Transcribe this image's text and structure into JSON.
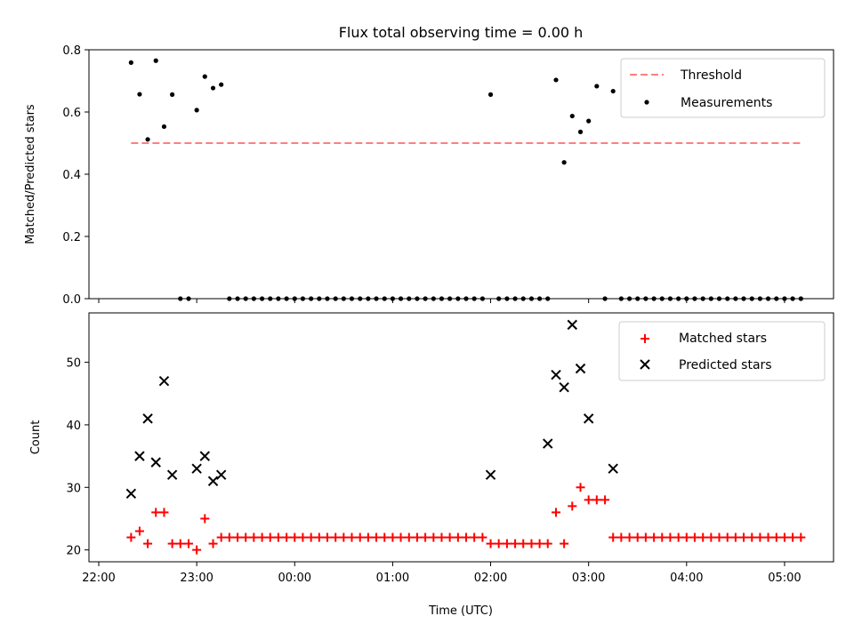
{
  "title": "Flux total observing time = 0.00 h",
  "colors": {
    "threshold": "#ff7f7f",
    "measurement": "#000000",
    "matched": "#ff0000",
    "predicted": "#000000"
  },
  "chart_data": [
    {
      "type": "scatter",
      "name": "ratio-panel",
      "ylabel": "Matched/Predicted stars",
      "xlim": [
        -0.1,
        7.5
      ],
      "ylim": [
        0,
        0.8
      ],
      "yticks": [
        0,
        0.2,
        0.4,
        0.6,
        0.8
      ],
      "ytick_labels": [
        "0.0",
        "0.2",
        "0.4",
        "0.6",
        "0.8"
      ],
      "threshold": {
        "label": "Threshold",
        "value": 0.5,
        "x_start": 0.33,
        "x_end": 7.17
      },
      "legend": [
        "Threshold",
        "Measurements"
      ],
      "series": [
        {
          "name": "Measurements",
          "x": [
            0.33,
            0.417,
            0.5,
            0.583,
            0.667,
            0.75,
            0.833,
            0.917,
            1.0,
            1.083,
            1.167,
            1.25,
            1.333,
            1.417,
            1.5,
            1.583,
            1.667,
            1.75,
            1.833,
            1.917,
            2.0,
            2.083,
            2.167,
            2.25,
            2.333,
            2.417,
            2.5,
            2.583,
            2.667,
            2.75,
            2.833,
            2.917,
            3.0,
            3.083,
            3.167,
            3.25,
            3.333,
            3.417,
            3.5,
            3.583,
            3.667,
            3.75,
            3.833,
            3.917,
            4.0,
            4.083,
            4.167,
            4.25,
            4.333,
            4.417,
            4.5,
            4.583,
            4.667,
            4.75,
            4.833,
            4.917,
            5.0,
            5.083,
            5.167,
            5.25,
            5.333,
            5.417,
            5.5,
            5.583,
            5.667,
            5.75,
            5.833,
            5.917,
            6.0,
            6.083,
            6.167,
            6.25,
            6.333,
            6.417,
            6.5,
            6.583,
            6.667,
            6.75,
            6.833,
            6.917,
            7.0,
            7.083,
            7.167
          ],
          "y": [
            0.759,
            0.657,
            0.512,
            0.765,
            0.553,
            0.656,
            0.0,
            0.0,
            0.606,
            0.714,
            0.677,
            0.688,
            0.0,
            0.0,
            0.0,
            0.0,
            0.0,
            0.0,
            0.0,
            0.0,
            0.0,
            0.0,
            0.0,
            0.0,
            0.0,
            0.0,
            0.0,
            0.0,
            0.0,
            0.0,
            0.0,
            0.0,
            0.0,
            0.0,
            0.0,
            0.0,
            0.0,
            0.0,
            0.0,
            0.0,
            0.0,
            0.0,
            0.0,
            0.0,
            0.656,
            0.0,
            0.0,
            0.0,
            0.0,
            0.0,
            0.0,
            0.0,
            0.703,
            0.438,
            0.587,
            0.536,
            0.571,
            0.683,
            0.0,
            0.667,
            0.0,
            0.0,
            0.0,
            0.0,
            0.0,
            0.0,
            0.0,
            0.0,
            0.0,
            0.0,
            0.0,
            0.0,
            0.0,
            0.0,
            0.0,
            0.0,
            0.0,
            0.0,
            0.0,
            0.0,
            0.0,
            0.0,
            0.0
          ]
        }
      ]
    },
    {
      "type": "scatter",
      "name": "count-panel",
      "xlabel": "Time (UTC)",
      "ylabel": "Count",
      "xlim": [
        -0.1,
        7.5
      ],
      "ylim": [
        18.1,
        57.9
      ],
      "yticks": [
        20,
        30,
        40,
        50
      ],
      "ytick_labels": [
        "20",
        "30",
        "40",
        "50"
      ],
      "xticks": [
        0,
        1,
        2,
        3,
        4,
        5,
        6,
        7
      ],
      "xtick_labels": [
        "22:00",
        "23:00",
        "00:00",
        "01:00",
        "02:00",
        "03:00",
        "04:00",
        "05:00"
      ],
      "legend": [
        "Matched stars",
        "Predicted stars"
      ],
      "series": [
        {
          "name": "Matched stars",
          "x": [
            0.33,
            0.417,
            0.5,
            0.583,
            0.667,
            0.75,
            0.833,
            0.917,
            1.0,
            1.083,
            1.167,
            1.25,
            1.333,
            1.417,
            1.5,
            1.583,
            1.667,
            1.75,
            1.833,
            1.917,
            2.0,
            2.083,
            2.167,
            2.25,
            2.333,
            2.417,
            2.5,
            2.583,
            2.667,
            2.75,
            2.833,
            2.917,
            3.0,
            3.083,
            3.167,
            3.25,
            3.333,
            3.417,
            3.5,
            3.583,
            3.667,
            3.75,
            3.833,
            3.917,
            4.0,
            4.083,
            4.167,
            4.25,
            4.333,
            4.417,
            4.5,
            4.583,
            4.667,
            4.75,
            4.833,
            4.917,
            5.0,
            5.083,
            5.167,
            5.25,
            5.333,
            5.417,
            5.5,
            5.583,
            5.667,
            5.75,
            5.833,
            5.917,
            6.0,
            6.083,
            6.167,
            6.25,
            6.333,
            6.417,
            6.5,
            6.583,
            6.667,
            6.75,
            6.833,
            6.917,
            7.0,
            7.083,
            7.167
          ],
          "y": [
            22,
            23,
            21,
            26,
            26,
            21,
            21,
            21,
            20,
            25,
            21,
            22,
            22,
            22,
            22,
            22,
            22,
            22,
            22,
            22,
            22,
            22,
            22,
            22,
            22,
            22,
            22,
            22,
            22,
            22,
            22,
            22,
            22,
            22,
            22,
            22,
            22,
            22,
            22,
            22,
            22,
            22,
            22,
            22,
            21,
            21,
            21,
            21,
            21,
            21,
            21,
            21,
            26,
            21,
            27,
            30,
            28,
            28,
            28,
            22,
            22,
            22,
            22,
            22,
            22,
            22,
            22,
            22,
            22,
            22,
            22,
            22,
            22,
            22,
            22,
            22,
            22,
            22,
            22,
            22,
            22,
            22,
            22
          ]
        },
        {
          "name": "Predicted stars",
          "x": [
            0.33,
            0.417,
            0.5,
            0.583,
            0.667,
            0.75,
            1.0,
            1.083,
            1.167,
            1.25,
            4.0,
            4.583,
            4.667,
            4.75,
            4.833,
            4.917,
            5.0,
            5.25
          ],
          "y": [
            29,
            35,
            41,
            34,
            47,
            32,
            33,
            35,
            31,
            32,
            32,
            37,
            48,
            46,
            56,
            49,
            41,
            33
          ]
        }
      ]
    }
  ]
}
